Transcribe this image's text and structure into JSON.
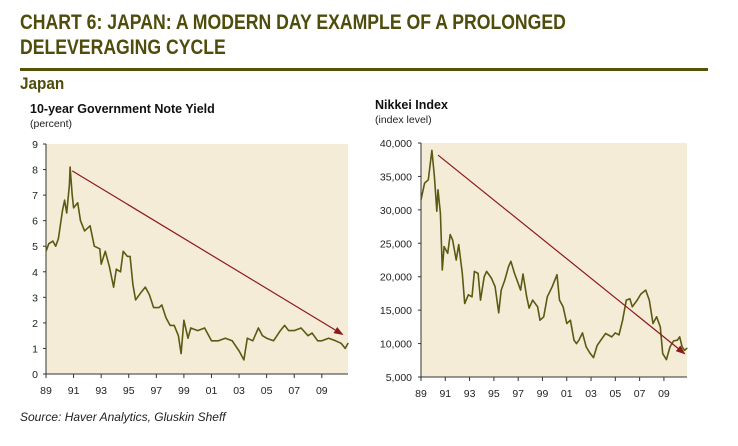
{
  "title_line1": "CHART 6: JAPAN: A MODERN DAY EXAMPLE OF A PROLONGED",
  "title_line2": "DELEVERAGING CYCLE",
  "section": "Japan",
  "source": "Source: Haver Analytics, Gluskin Sheff",
  "colors": {
    "plot_bg": "#f5ecd8",
    "series": "#5b5a12",
    "arrow": "#8b1a1a",
    "title": "#4f4c0c"
  },
  "chart_data": [
    {
      "type": "line",
      "title": "10-year Government Note Yield",
      "subtitle": "(percent)",
      "xlim": [
        1989,
        2010.9
      ],
      "ylim": [
        0,
        9
      ],
      "yticks": [
        0,
        1,
        2,
        3,
        4,
        5,
        6,
        7,
        8,
        9
      ],
      "ytick_labels": [
        "0",
        "1",
        "2",
        "3",
        "4",
        "5",
        "6",
        "7",
        "8",
        "9"
      ],
      "xticks": [
        1989,
        1991,
        1993,
        1995,
        1997,
        1999,
        2001,
        2003,
        2005,
        2007,
        2009
      ],
      "xtick_labels": [
        "89",
        "91",
        "93",
        "95",
        "97",
        "99",
        "01",
        "03",
        "05",
        "07",
        "09"
      ],
      "x": [
        1989.0,
        1989.2,
        1989.5,
        1989.7,
        1989.9,
        1990.2,
        1990.35,
        1990.5,
        1990.7,
        1990.75,
        1990.9,
        1991.0,
        1991.3,
        1991.5,
        1991.8,
        1992.2,
        1992.5,
        1992.9,
        1993.0,
        1993.3,
        1993.6,
        1993.9,
        1994.1,
        1994.4,
        1994.6,
        1994.9,
        1995.1,
        1995.3,
        1995.5,
        1995.9,
        1996.2,
        1996.5,
        1996.8,
        1997.2,
        1997.4,
        1997.7,
        1998.0,
        1998.3,
        1998.6,
        1998.8,
        1999.0,
        1999.3,
        1999.5,
        2000.0,
        2000.5,
        2001.0,
        2001.5,
        2002.0,
        2002.5,
        2003.0,
        2003.35,
        2003.6,
        2004.0,
        2004.4,
        2004.7,
        2005.0,
        2005.5,
        2006.0,
        2006.3,
        2006.6,
        2007.0,
        2007.5,
        2008.0,
        2008.3,
        2008.7,
        2009.0,
        2009.5,
        2010.0,
        2010.4,
        2010.7,
        2010.9
      ],
      "y": [
        4.8,
        5.1,
        5.2,
        5.0,
        5.3,
        6.4,
        6.8,
        6.3,
        7.4,
        8.1,
        7.0,
        6.5,
        6.7,
        6.0,
        5.6,
        5.8,
        5.0,
        4.9,
        4.3,
        4.8,
        4.2,
        3.4,
        4.1,
        4.0,
        4.8,
        4.6,
        4.6,
        3.5,
        2.9,
        3.2,
        3.4,
        3.1,
        2.6,
        2.6,
        2.7,
        2.2,
        1.9,
        1.9,
        1.5,
        0.8,
        2.1,
        1.4,
        1.8,
        1.7,
        1.8,
        1.3,
        1.3,
        1.4,
        1.3,
        0.9,
        0.55,
        1.4,
        1.3,
        1.8,
        1.5,
        1.4,
        1.3,
        1.7,
        1.9,
        1.7,
        1.7,
        1.8,
        1.5,
        1.6,
        1.3,
        1.3,
        1.4,
        1.3,
        1.2,
        1.0,
        1.2
      ],
      "trend_arrow": {
        "from": [
          1990.9,
          7.95
        ],
        "to": [
          2010.5,
          1.55
        ]
      }
    },
    {
      "type": "line",
      "title": "Nikkei Index",
      "subtitle": "(index level)",
      "xlim": [
        1989,
        2010.9
      ],
      "ylim": [
        5000,
        40000
      ],
      "yticks": [
        5000,
        10000,
        15000,
        20000,
        25000,
        30000,
        35000,
        40000
      ],
      "ytick_labels": [
        "5,000",
        "10,000",
        "15,000",
        "20,000",
        "25,000",
        "30,000",
        "35,000",
        "40,000"
      ],
      "xticks": [
        1989,
        1991,
        1993,
        1995,
        1997,
        1999,
        2001,
        2003,
        2005,
        2007,
        2009
      ],
      "xtick_labels": [
        "89",
        "91",
        "93",
        "95",
        "97",
        "99",
        "01",
        "03",
        "05",
        "07",
        "09"
      ],
      "x": [
        1989.0,
        1989.3,
        1989.6,
        1989.9,
        1990.1,
        1990.3,
        1990.4,
        1990.6,
        1990.75,
        1990.9,
        1991.2,
        1991.4,
        1991.6,
        1991.9,
        1992.1,
        1992.4,
        1992.6,
        1992.9,
        1993.2,
        1993.4,
        1993.7,
        1993.9,
        1994.2,
        1994.4,
        1994.8,
        1995.1,
        1995.4,
        1995.6,
        1995.9,
        1996.2,
        1996.4,
        1996.7,
        1996.9,
        1997.2,
        1997.4,
        1997.7,
        1997.9,
        1998.2,
        1998.6,
        1998.8,
        1999.1,
        1999.4,
        1999.8,
        2000.2,
        2000.4,
        2000.7,
        2001.0,
        2001.3,
        2001.6,
        2001.8,
        2002.0,
        2002.3,
        2002.6,
        2002.9,
        2003.2,
        2003.5,
        2003.8,
        2004.2,
        2004.5,
        2004.7,
        2005.0,
        2005.3,
        2005.6,
        2005.9,
        2006.2,
        2006.4,
        2006.8,
        2007.1,
        2007.5,
        2007.8,
        2008.1,
        2008.4,
        2008.7,
        2008.9,
        2009.2,
        2009.5,
        2009.8,
        2010.1,
        2010.3,
        2010.5,
        2010.7,
        2010.9
      ],
      "y": [
        31500,
        34000,
        34500,
        38900,
        35000,
        29800,
        33000,
        29500,
        21000,
        24500,
        23500,
        26300,
        25500,
        22500,
        24800,
        20500,
        16000,
        17300,
        17000,
        20800,
        20500,
        16500,
        20000,
        20800,
        19800,
        18500,
        14600,
        18000,
        19500,
        21500,
        22300,
        20500,
        19500,
        18000,
        20400,
        17000,
        15300,
        16500,
        15500,
        13500,
        14000,
        17000,
        18500,
        20300,
        16500,
        15500,
        13000,
        13500,
        10500,
        10000,
        10500,
        11600,
        9500,
        8600,
        7900,
        9700,
        10500,
        11500,
        11200,
        11000,
        11600,
        11300,
        13500,
        16500,
        16700,
        15500,
        16500,
        17400,
        18000,
        16500,
        13000,
        14000,
        12500,
        8500,
        7600,
        9500,
        10400,
        10500,
        11000,
        9500,
        9000,
        9300
      ],
      "trend_arrow": {
        "from": [
          1990.4,
          38200
        ],
        "to": [
          2010.7,
          8500
        ]
      }
    }
  ]
}
